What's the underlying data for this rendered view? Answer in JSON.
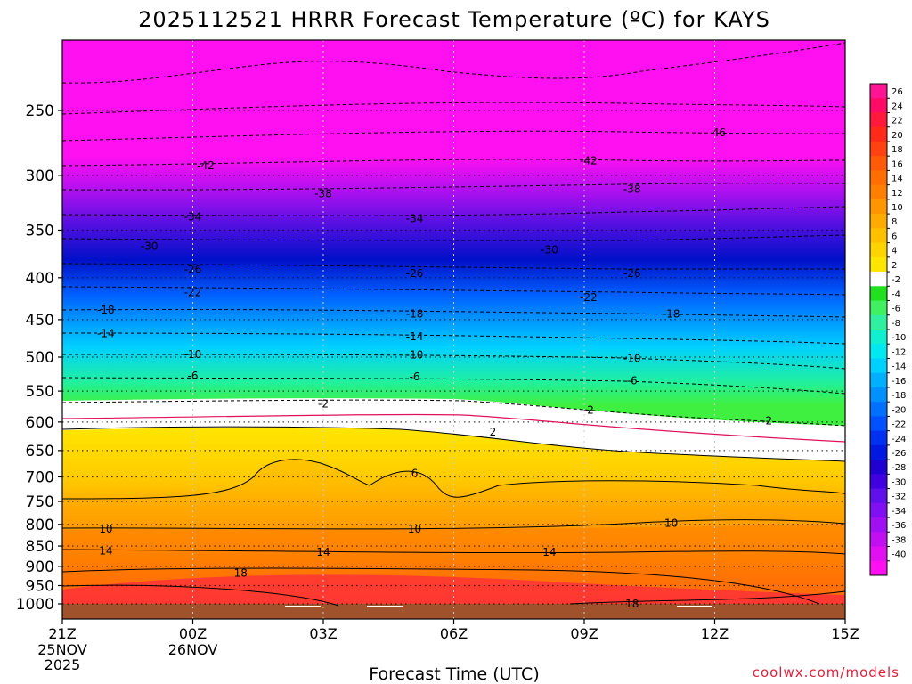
{
  "chart_data": {
    "type": "heatmap",
    "title": "2025112521 HRRR Forecast Temperature (ºC) for KAYS",
    "xlabel": "Forecast Time (UTC)",
    "ylabel": "",
    "credit": "coolwx.com/models",
    "x_ticks": [
      {
        "hour": 0,
        "label": "21Z",
        "sub": [
          "25NOV",
          "2025"
        ]
      },
      {
        "hour": 3,
        "label": "00Z",
        "sub": [
          "26NOV"
        ]
      },
      {
        "hour": 6,
        "label": "03Z",
        "sub": []
      },
      {
        "hour": 9,
        "label": "06Z",
        "sub": []
      },
      {
        "hour": 12,
        "label": "09Z",
        "sub": []
      },
      {
        "hour": 15,
        "label": "12Z",
        "sub": []
      },
      {
        "hour": 18,
        "label": "15Z",
        "sub": []
      }
    ],
    "xlim": [
      0,
      18
    ],
    "ylim_hpa": [
      1000,
      200
    ],
    "y_ticks": [
      250,
      300,
      350,
      400,
      450,
      500,
      550,
      600,
      650,
      700,
      750,
      800,
      850,
      900,
      950,
      1000
    ],
    "colorbar": {
      "labels": [
        "26",
        "24",
        "22",
        "20",
        "18",
        "16",
        "14",
        "12",
        "10",
        "8",
        "6",
        "4",
        "2",
        "-2",
        "-4",
        "-6",
        "-8",
        "-10",
        "-12",
        "-14",
        "-16",
        "-18",
        "-20",
        "-22",
        "-24",
        "-26",
        "-28",
        "-30",
        "-32",
        "-34",
        "-36",
        "-38",
        "-40"
      ],
      "colors": [
        "#ff1493",
        "#ff0a64",
        "#ff1a3c",
        "#ff2a1a",
        "#ff4210",
        "#ff5a08",
        "#ff6e00",
        "#ff8000",
        "#ff9600",
        "#ffaa00",
        "#ffc000",
        "#ffd400",
        "#ffe600",
        "#ffffff",
        "#20e020",
        "#40f060",
        "#30f0a0",
        "#10f0d0",
        "#00e8f0",
        "#00d0ff",
        "#00b0ff",
        "#0090ff",
        "#0070ff",
        "#0050ff",
        "#0030f0",
        "#0018e0",
        "#2000d0",
        "#4000e0",
        "#6010e8",
        "#8010f0",
        "#a010f0",
        "#c010f0",
        "#e010f0",
        "#ff10f0"
      ]
    },
    "profile_at_start": [
      {
        "hpa": 1000,
        "temp": 21
      },
      {
        "hpa": 950,
        "temp": 20
      },
      {
        "hpa": 900,
        "temp": 17
      },
      {
        "hpa": 850,
        "temp": 14
      },
      {
        "hpa": 800,
        "temp": 10
      },
      {
        "hpa": 750,
        "temp": 6
      },
      {
        "hpa": 700,
        "temp": 5
      },
      {
        "hpa": 650,
        "temp": 3
      },
      {
        "hpa": 600,
        "temp": 0
      },
      {
        "hpa": 550,
        "temp": -4
      },
      {
        "hpa": 500,
        "temp": -10
      },
      {
        "hpa": 450,
        "temp": -16
      },
      {
        "hpa": 400,
        "temp": -24
      },
      {
        "hpa": 350,
        "temp": -32
      },
      {
        "hpa": 300,
        "temp": -40
      },
      {
        "hpa": 250,
        "temp": -46
      }
    ],
    "contour_labels": [
      {
        "text": "-42",
        "hour": 3.3,
        "hpa": 292
      },
      {
        "text": "-42",
        "hour": 12.1,
        "hpa": 288
      },
      {
        "text": "46",
        "hour": 15.1,
        "hpa": 266
      },
      {
        "text": "-38",
        "hour": 6.0,
        "hpa": 316
      },
      {
        "text": "-38",
        "hour": 13.1,
        "hpa": 312
      },
      {
        "text": "-34",
        "hour": 3.0,
        "hpa": 337
      },
      {
        "text": "-34",
        "hour": 8.1,
        "hpa": 339
      },
      {
        "text": "-30",
        "hour": 2.0,
        "hpa": 366
      },
      {
        "text": "-30",
        "hour": 11.2,
        "hpa": 370
      },
      {
        "text": "-26",
        "hour": 3.0,
        "hpa": 391
      },
      {
        "text": "-26",
        "hour": 8.1,
        "hpa": 395
      },
      {
        "text": "-26",
        "hour": 13.1,
        "hpa": 395
      },
      {
        "text": "-22",
        "hour": 3.0,
        "hpa": 417
      },
      {
        "text": "-22",
        "hour": 12.1,
        "hpa": 423
      },
      {
        "text": "-18",
        "hour": 1.0,
        "hpa": 438
      },
      {
        "text": "-18",
        "hour": 8.1,
        "hpa": 443
      },
      {
        "text": "-18",
        "hour": 14.0,
        "hpa": 443
      },
      {
        "text": "-14",
        "hour": 1.0,
        "hpa": 468
      },
      {
        "text": "-14",
        "hour": 8.1,
        "hpa": 472
      },
      {
        "text": "-10",
        "hour": 3.0,
        "hpa": 496
      },
      {
        "text": "-10",
        "hour": 8.1,
        "hpa": 497
      },
      {
        "text": "-10",
        "hour": 13.1,
        "hpa": 502
      },
      {
        "text": "-6",
        "hour": 3.0,
        "hpa": 527
      },
      {
        "text": "-6",
        "hour": 8.1,
        "hpa": 528
      },
      {
        "text": "-6",
        "hour": 13.1,
        "hpa": 534
      },
      {
        "text": "-2",
        "hour": 6.0,
        "hpa": 570
      },
      {
        "text": "-2",
        "hour": 12.1,
        "hpa": 580
      },
      {
        "text": "-2",
        "hour": 16.2,
        "hpa": 598
      },
      {
        "text": "2",
        "hour": 9.9,
        "hpa": 617
      },
      {
        "text": "6",
        "hour": 8.1,
        "hpa": 693
      },
      {
        "text": "10",
        "hour": 1.0,
        "hpa": 810
      },
      {
        "text": "10",
        "hour": 8.1,
        "hpa": 810
      },
      {
        "text": "10",
        "hour": 14.0,
        "hpa": 797
      },
      {
        "text": "14",
        "hour": 1.0,
        "hpa": 862
      },
      {
        "text": "14",
        "hour": 6.0,
        "hpa": 865
      },
      {
        "text": "14",
        "hour": 11.2,
        "hpa": 865
      },
      {
        "text": "18",
        "hour": 4.1,
        "hpa": 917
      },
      {
        "text": "18",
        "hour": 13.1,
        "hpa": 1000
      }
    ]
  }
}
